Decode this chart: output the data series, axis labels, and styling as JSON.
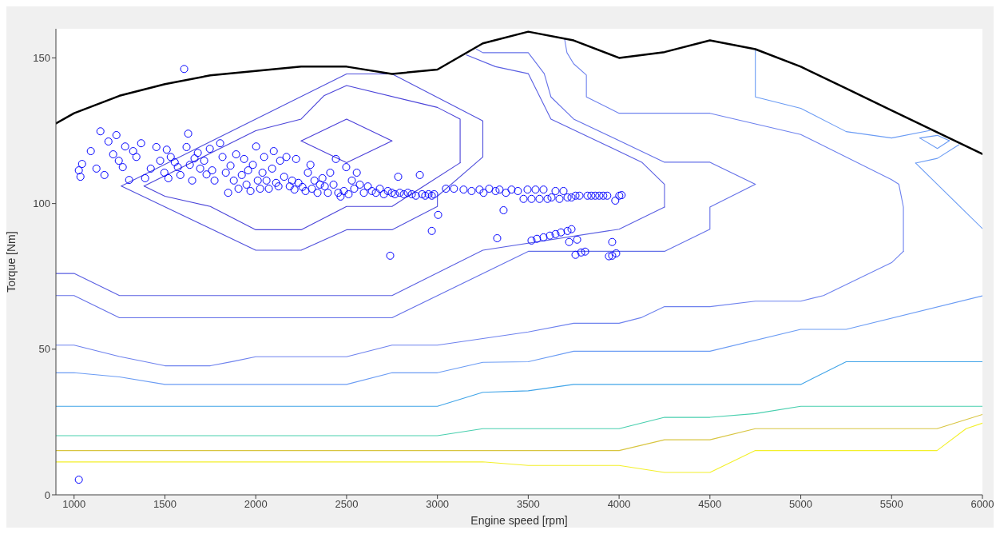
{
  "chart_data": {
    "type": "line",
    "xlabel": "Engine speed [rpm]",
    "ylabel": "Torque [Nm]",
    "xlim": [
      900,
      6000
    ],
    "xticks": [
      1000,
      1500,
      2000,
      2500,
      3000,
      3500,
      4000,
      4500,
      5000,
      5500,
      6000
    ],
    "ylim": [
      0,
      160
    ],
    "yticks": [
      0,
      50,
      100,
      150
    ],
    "marker": "none",
    "line_style": "solid",
    "series": [
      {
        "color": "#4b3fd9",
        "x": [
          2250,
          2500,
          2750
        ],
        "values": [
          121.5,
          129,
          121.5
        ]
      },
      {
        "color": "#4b3fd9",
        "x": [
          2250,
          2500,
          2750
        ],
        "values": [
          121.5,
          114,
          121.5
        ]
      },
      {
        "color": "#4b44d9",
        "x": [
          1385,
          2000,
          2250,
          2375,
          2500,
          3000,
          3125,
          3125
        ],
        "values": [
          106,
          125,
          129,
          137,
          140.5,
          133,
          129,
          114
        ]
      },
      {
        "color": "#4b44d9",
        "x": [
          1385,
          1500,
          1750,
          2000,
          2250,
          2500,
          2750,
          3125
        ],
        "values": [
          106,
          102.5,
          99,
          91,
          91,
          99,
          99,
          114
        ]
      },
      {
        "color": "#5050dc",
        "x": [
          1260,
          2500,
          2750,
          3250,
          3250
        ],
        "values": [
          106,
          144.5,
          144.5,
          128.4,
          116
        ]
      },
      {
        "color": "#5050dc",
        "x": [
          1260,
          2000,
          2250,
          2500,
          2750,
          3000,
          3000,
          3250
        ],
        "values": [
          106,
          84,
          84,
          91,
          91,
          99,
          102.5,
          116
        ]
      },
      {
        "color": "#5a5fe2",
        "x": [
          3160,
          3320,
          3500,
          3625,
          4125,
          4250,
          4250
        ],
        "values": [
          151,
          147,
          144.6,
          129,
          114.2,
          106.6,
          98.8
        ]
      },
      {
        "color": "#5a5fe2",
        "x": [
          900,
          1000,
          1250,
          2750,
          3250,
          4000,
          4250
        ],
        "values": [
          76,
          76,
          68.4,
          68.4,
          84,
          91.2,
          98.8
        ]
      },
      {
        "color": "#6470e8",
        "x": [
          3215,
          3250,
          3500,
          3588,
          3625,
          3750,
          4250,
          4500,
          4750
        ],
        "values": [
          153,
          151.8,
          151.8,
          144.6,
          136.6,
          129,
          114.2,
          114.2,
          106.6
        ]
      },
      {
        "color": "#6470e8",
        "x": [
          900,
          1000,
          1250,
          2750,
          3500,
          4250,
          4500,
          4500,
          4750
        ],
        "values": [
          68.4,
          68.4,
          60.8,
          60.8,
          83.6,
          83.6,
          91.2,
          98.8,
          106.6
        ]
      },
      {
        "color": "#6e82ee",
        "x": [
          3700,
          3713,
          3750,
          3820,
          3820,
          4000,
          4500,
          5000,
          5500,
          5540,
          5565,
          5565
        ],
        "values": [
          156.5,
          151.8,
          148,
          144.1,
          136.6,
          131,
          131,
          123.7,
          108.2,
          106.6,
          98.8,
          83.6
        ]
      },
      {
        "color": "#6e82ee",
        "x": [
          900,
          1000,
          1250,
          1500,
          1750,
          1875,
          2000,
          2500,
          2750,
          3000,
          3500,
          3750,
          4000,
          4125,
          4250,
          4500,
          4750,
          5000,
          5125,
          5500,
          5565
        ],
        "values": [
          51.4,
          51.4,
          47.5,
          44.3,
          44.3,
          45.8,
          47.4,
          47.4,
          51.4,
          51.4,
          55.9,
          58.9,
          58.9,
          60.9,
          64.6,
          64.6,
          66.5,
          66.5,
          68.4,
          79.7,
          83.6
        ]
      },
      {
        "color": "#6b9cf4",
        "x": [
          4750,
          4750,
          5000,
          5250,
          5500,
          5710
        ],
        "values": [
          153,
          136.6,
          132.7,
          124.7,
          122.5,
          125.1
        ]
      },
      {
        "color": "#6b9cf4",
        "x": [
          5655,
          5752,
          5818
        ],
        "values": [
          122.5,
          123.4,
          121.6
        ]
      },
      {
        "color": "#6b9cf4",
        "x": [
          5655,
          5752,
          5818
        ],
        "values": [
          122.5,
          118.9,
          121.6
        ]
      },
      {
        "color": "#6b9cf4",
        "x": [
          5632,
          5752,
          5871
        ],
        "values": [
          113.9,
          115.5,
          120.2
        ]
      },
      {
        "color": "#6b9cf4",
        "x": [
          5632,
          6000
        ],
        "values": [
          113.9,
          91.4
        ]
      },
      {
        "color": "#6b9cf4",
        "x": [
          900,
          1000,
          1250,
          1500,
          2500,
          2750,
          3000,
          3250,
          3500,
          3750,
          4500,
          5000,
          5250,
          6000
        ],
        "values": [
          41.9,
          41.9,
          40.5,
          37.9,
          37.9,
          41.9,
          41.9,
          45.5,
          45.7,
          49.3,
          49.3,
          56.8,
          56.8,
          68.3
        ]
      },
      {
        "color": "#42a5e8",
        "x": [
          900,
          3000,
          3250,
          3500,
          3750,
          5000,
          5250,
          6000
        ],
        "values": [
          30.4,
          30.4,
          35.2,
          35.7,
          37.9,
          37.9,
          45.7,
          45.7
        ]
      },
      {
        "color": "#48cfae",
        "x": [
          900,
          3000,
          3250,
          4000,
          4250,
          4500,
          4750,
          5000,
          6000
        ],
        "values": [
          20.3,
          20.3,
          22.7,
          22.7,
          26.6,
          26.6,
          27.9,
          30.4,
          30.4
        ]
      },
      {
        "color": "#d8c540",
        "x": [
          900,
          4000,
          4250,
          4500,
          4750,
          5750,
          6000
        ],
        "values": [
          15.2,
          15.2,
          18.9,
          18.9,
          22.7,
          22.7,
          27.6
        ]
      },
      {
        "color": "#f3f02a",
        "x": [
          900,
          3250,
          3500,
          4000,
          4250,
          4500,
          4750,
          5750,
          5910,
          6000
        ],
        "values": [
          11.3,
          11.3,
          10.1,
          10.1,
          7.7,
          7.7,
          15.2,
          15.2,
          22.7,
          24.6
        ]
      },
      {
        "color": "#000000",
        "x": [
          900,
          1000,
          1250,
          1500,
          1750,
          2000,
          2250,
          2500,
          2750,
          3000,
          3250,
          3500,
          3750,
          4000,
          4250,
          4500,
          4750,
          5000,
          5250,
          5500,
          5750,
          6000
        ],
        "values": [
          127.5,
          131,
          137,
          141,
          144,
          145.5,
          147,
          147,
          144.5,
          146,
          155,
          159,
          156,
          150,
          152,
          156,
          153,
          147,
          139.5,
          132,
          124.5,
          117
        ]
      },
      {
        "type": "scatter",
        "marker": "circle",
        "color": "#0000ff",
        "x": [
          1026,
          1044,
          1035,
          1092,
          1123,
          1145,
          1167,
          1189,
          1215,
          1233,
          1246,
          1268,
          1281,
          1303,
          1325,
          1343,
          1369,
          1391,
          1422,
          1453,
          1474,
          1497,
          1510,
          1519,
          1532,
          1554,
          1571,
          1585,
          1606,
          1619,
          1628,
          1637,
          1650,
          1663,
          1681,
          1694,
          1716,
          1729,
          1747,
          1760,
          1773,
          1804,
          1817,
          1835,
          1848,
          1861,
          1879,
          1892,
          1905,
          1923,
          1936,
          1949,
          1958,
          1971,
          1984,
          2002,
          2011,
          2024,
          2037,
          2046,
          2059,
          2072,
          2090,
          2099,
          2112,
          2125,
          2134,
          2156,
          2169,
          2187,
          2200,
          2213,
          2222,
          2235,
          2257,
          2274,
          2287,
          2301,
          2309,
          2323,
          2340,
          2353,
          2367,
          2380,
          2397,
          2410,
          2428,
          2441,
          2454,
          2467,
          2485,
          2498,
          2511,
          2529,
          2542,
          2556,
          2573,
          2595,
          2617,
          2639,
          2661,
          2683,
          2705,
          2727,
          2749,
          2766,
          2784,
          2793,
          2815,
          2837,
          2859,
          2881,
          2903,
          2916,
          2933,
          2951,
          2969,
          2982,
          2969,
          3004,
          2740,
          3047,
          3091,
          3144,
          3188,
          3232,
          3254,
          3285,
          3320,
          3342,
          3377,
          3408,
          3443,
          3474,
          3496,
          3518,
          3540,
          3562,
          3584,
          3606,
          3628,
          3650,
          3672,
          3694,
          3716,
          3738,
          3760,
          3782,
          3826,
          3847,
          3869,
          3891,
          3913,
          3935,
          3979,
          4001,
          4014,
          3518,
          3548,
          3584,
          3619,
          3650,
          3680,
          3716,
          3738,
          3725,
          3769,
          3760,
          3791,
          3813,
          3962,
          3944,
          3962,
          3984,
          3329,
          3364,
          1026
        ],
        "values": [
          111.4,
          113.6,
          109.2,
          118,
          112,
          124.8,
          109.8,
          121.3,
          116.9,
          123.5,
          114.7,
          112.5,
          119.6,
          108.1,
          118,
          116,
          120.7,
          108.7,
          112,
          119.4,
          114.7,
          110.6,
          118.5,
          108.7,
          116,
          114.2,
          112.5,
          109.8,
          146.2,
          119.4,
          124,
          113.3,
          107.9,
          115.5,
          117.4,
          112,
          114.7,
          110,
          118.8,
          111.4,
          107.9,
          120.7,
          116,
          110.6,
          103.7,
          113,
          107.9,
          116.9,
          105.1,
          109.8,
          115.3,
          106.5,
          111.4,
          104.3,
          113.3,
          119.6,
          107.9,
          105.1,
          110.6,
          116,
          107.9,
          105.1,
          112,
          118,
          107.1,
          105.9,
          114.7,
          109.2,
          116,
          105.9,
          107.9,
          104.8,
          115.3,
          107.1,
          105.7,
          104.3,
          110.6,
          113.3,
          105.1,
          107.9,
          103.7,
          106.5,
          108.7,
          105.9,
          103.7,
          110.6,
          106.5,
          115.3,
          103.7,
          102.4,
          104.3,
          112.5,
          103.2,
          107.9,
          105.1,
          110.6,
          106.5,
          103.7,
          105.9,
          104.3,
          103.7,
          105.1,
          103.2,
          104.3,
          103.7,
          103.2,
          109.2,
          103.7,
          103.2,
          103.7,
          103.2,
          102.7,
          109.8,
          103.2,
          102.7,
          103.2,
          102.7,
          103.2,
          90.6,
          96.1,
          82.1,
          105.1,
          105.1,
          104.8,
          104.3,
          104.8,
          103.7,
          105.1,
          104.3,
          104.8,
          103.7,
          104.8,
          104.3,
          101.6,
          104.8,
          101.6,
          104.8,
          101.6,
          104.8,
          101.6,
          102.1,
          104.3,
          101.6,
          104.3,
          102.1,
          102.1,
          102.7,
          102.7,
          102.7,
          102.7,
          102.7,
          102.7,
          102.7,
          102.7,
          101,
          102.7,
          102.9,
          87.3,
          87.9,
          88.4,
          89,
          89.5,
          90.1,
          90.6,
          91.2,
          86.8,
          87.6,
          82.4,
          83.2,
          83.5,
          86.8,
          81.9,
          82.1,
          82.9,
          88.1,
          97.7,
          5.2
        ]
      }
    ]
  }
}
